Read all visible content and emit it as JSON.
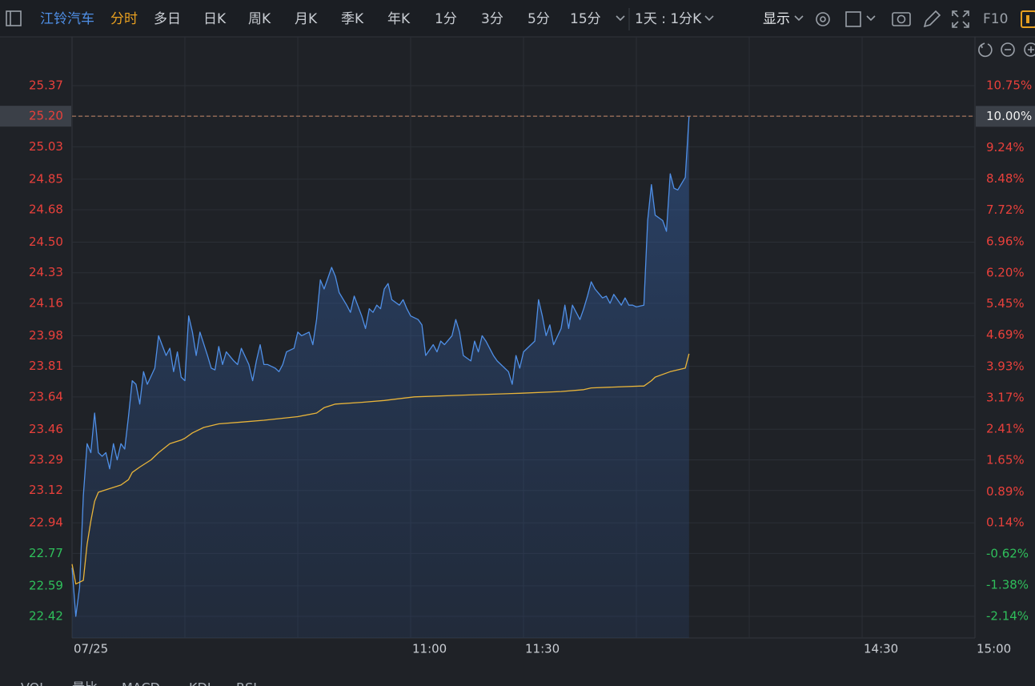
{
  "toolbar": {
    "stock": "江铃汽车",
    "tabs": [
      "分时",
      "多日",
      "日K",
      "周K",
      "月K",
      "季K",
      "年K",
      "1分",
      "3分",
      "5分",
      "15分"
    ],
    "period": "1天 : 1分K",
    "display": "显示",
    "f10": "F10"
  },
  "indicator_tabs": [
    "VOL",
    "量比",
    "MACD",
    "KDJ",
    "RSI"
  ],
  "chart_data": {
    "type": "line",
    "xlim": [
      0,
      240
    ],
    "xticks": [
      {
        "value": 0,
        "label": "07/25"
      },
      {
        "value": 90,
        "label": "11:00"
      },
      {
        "value": 120,
        "label": "11:30"
      },
      {
        "value": 210,
        "label": "14:30"
      },
      {
        "value": 240,
        "label": "15:00"
      }
    ],
    "xgrid": [
      30,
      60,
      150,
      180
    ],
    "ylim": [
      22.3,
      25.49
    ],
    "yticks": [
      {
        "value": 25.37,
        "label": "25.37"
      },
      {
        "value": 25.2,
        "label": "25.20"
      },
      {
        "value": 25.03,
        "label": "25.03"
      },
      {
        "value": 24.85,
        "label": "24.85"
      },
      {
        "value": 24.68,
        "label": "24.68"
      },
      {
        "value": 24.5,
        "label": "24.50"
      },
      {
        "value": 24.33,
        "label": "24.33"
      },
      {
        "value": 24.16,
        "label": "24.16"
      },
      {
        "value": 23.98,
        "label": "23.98"
      },
      {
        "value": 23.81,
        "label": "23.81"
      },
      {
        "value": 23.64,
        "label": "23.64"
      },
      {
        "value": 23.46,
        "label": "23.46"
      },
      {
        "value": 23.29,
        "label": "23.29"
      },
      {
        "value": 23.12,
        "label": "23.12"
      },
      {
        "value": 22.94,
        "label": "22.94"
      },
      {
        "value": 22.77,
        "label": "22.77"
      },
      {
        "value": 22.59,
        "label": "22.59"
      },
      {
        "value": 22.42,
        "label": "22.42"
      }
    ],
    "y2lim": [
      -2.66,
      11.27
    ],
    "y2ticks": [
      {
        "value": 10.75,
        "label": "10.75%"
      },
      {
        "value": 10.0,
        "label": "10.00%"
      },
      {
        "value": 9.24,
        "label": "9.24%"
      },
      {
        "value": 8.48,
        "label": "8.48%"
      },
      {
        "value": 7.72,
        "label": "7.72%"
      },
      {
        "value": 6.96,
        "label": "6.96%"
      },
      {
        "value": 6.2,
        "label": "6.20%"
      },
      {
        "value": 5.45,
        "label": "5.45%"
      },
      {
        "value": 4.69,
        "label": "4.69%"
      },
      {
        "value": 3.93,
        "label": "3.93%"
      },
      {
        "value": 3.17,
        "label": "3.17%"
      },
      {
        "value": 2.41,
        "label": "2.41%"
      },
      {
        "value": 1.65,
        "label": "1.65%"
      },
      {
        "value": 0.89,
        "label": "0.89%"
      },
      {
        "value": 0.14,
        "label": "0.14%"
      },
      {
        "value": -0.62,
        "label": "-0.62%"
      },
      {
        "value": -1.38,
        "label": "-1.38%"
      },
      {
        "value": -2.14,
        "label": "-2.14%"
      }
    ],
    "grid": true,
    "up_color": "#e8403b",
    "down_color": "#2fbf5b",
    "series": [
      {
        "color": "#4f8fe6",
        "area": true,
        "x": [
          0,
          1,
          2,
          3,
          4,
          5,
          6,
          7,
          8,
          9,
          10,
          11,
          12,
          13,
          14,
          15,
          16,
          17,
          18,
          19,
          20,
          22,
          23,
          25,
          26,
          27,
          28,
          29,
          30,
          31,
          32,
          33,
          34,
          36,
          37,
          38,
          39,
          40,
          41,
          43,
          44,
          45,
          47,
          48,
          49,
          50,
          51,
          52,
          54,
          55,
          56,
          57,
          59,
          60,
          61,
          63,
          64,
          65,
          66,
          67,
          69,
          70,
          71,
          73,
          74,
          75,
          77,
          78,
          79,
          80,
          81,
          82,
          83,
          84,
          85,
          87,
          88,
          89,
          90,
          92,
          93,
          94,
          96,
          97,
          98,
          99,
          101,
          102,
          103,
          104,
          106,
          107,
          108,
          109,
          110,
          112,
          113,
          114,
          116,
          117,
          118,
          119,
          120,
          122,
          123,
          124,
          125,
          126,
          127,
          128,
          130,
          131,
          132,
          133,
          135,
          136,
          137,
          138,
          139,
          141,
          142,
          143,
          144,
          146,
          147,
          148,
          149,
          150,
          152,
          153,
          154,
          155,
          157,
          158,
          159,
          160,
          161,
          163,
          164
        ],
        "values": [
          22.69,
          22.42,
          22.58,
          23.09,
          23.38,
          23.33,
          23.55,
          23.33,
          23.31,
          23.33,
          23.24,
          23.38,
          23.29,
          23.38,
          23.35,
          23.53,
          23.73,
          23.71,
          23.6,
          23.78,
          23.71,
          23.8,
          23.98,
          23.87,
          23.91,
          23.78,
          23.89,
          23.75,
          23.73,
          24.09,
          24.0,
          23.87,
          24.0,
          23.87,
          23.8,
          23.79,
          23.92,
          23.82,
          23.89,
          23.84,
          23.82,
          23.91,
          23.82,
          23.73,
          23.84,
          23.93,
          23.82,
          23.82,
          23.8,
          23.78,
          23.82,
          23.89,
          23.91,
          24.0,
          23.98,
          24.0,
          23.93,
          24.07,
          24.29,
          24.24,
          24.36,
          24.31,
          24.22,
          24.15,
          24.11,
          24.2,
          24.09,
          24.02,
          24.13,
          24.11,
          24.15,
          24.13,
          24.24,
          24.27,
          24.18,
          24.15,
          24.18,
          24.13,
          24.09,
          24.07,
          24.04,
          23.87,
          23.93,
          23.89,
          23.95,
          23.93,
          23.98,
          24.07,
          24.0,
          23.87,
          23.84,
          23.95,
          23.89,
          23.98,
          23.95,
          23.87,
          23.84,
          23.82,
          23.78,
          23.71,
          23.87,
          23.8,
          23.89,
          23.93,
          23.95,
          24.18,
          24.09,
          23.98,
          24.04,
          23.93,
          24.02,
          24.15,
          24.02,
          24.15,
          24.07,
          24.13,
          24.2,
          24.28,
          24.24,
          24.19,
          24.2,
          24.16,
          24.21,
          24.15,
          24.19,
          24.15,
          24.15,
          24.14,
          24.15,
          24.62,
          24.82,
          24.65,
          24.62,
          24.56,
          24.88,
          24.8,
          24.79,
          24.86,
          25.2
        ]
      },
      {
        "color": "#e8b43a",
        "area": false,
        "x": [
          0,
          1,
          3,
          4,
          5,
          6,
          7,
          10,
          13,
          15,
          16,
          18,
          21,
          23,
          26,
          29,
          30,
          32,
          35,
          39,
          45,
          51,
          60,
          65,
          67,
          70,
          77,
          83,
          91,
          104,
          119,
          130,
          136,
          138,
          151,
          152,
          154,
          155,
          159,
          163,
          164
        ],
        "values": [
          22.71,
          22.6,
          22.62,
          22.82,
          22.95,
          23.06,
          23.11,
          23.13,
          23.15,
          23.18,
          23.22,
          23.25,
          23.29,
          23.33,
          23.38,
          23.4,
          23.41,
          23.44,
          23.47,
          23.49,
          23.5,
          23.51,
          23.53,
          23.55,
          23.58,
          23.6,
          23.61,
          23.62,
          23.64,
          23.65,
          23.66,
          23.67,
          23.68,
          23.69,
          23.7,
          23.7,
          23.73,
          23.75,
          23.78,
          23.8,
          23.88
        ]
      }
    ]
  }
}
